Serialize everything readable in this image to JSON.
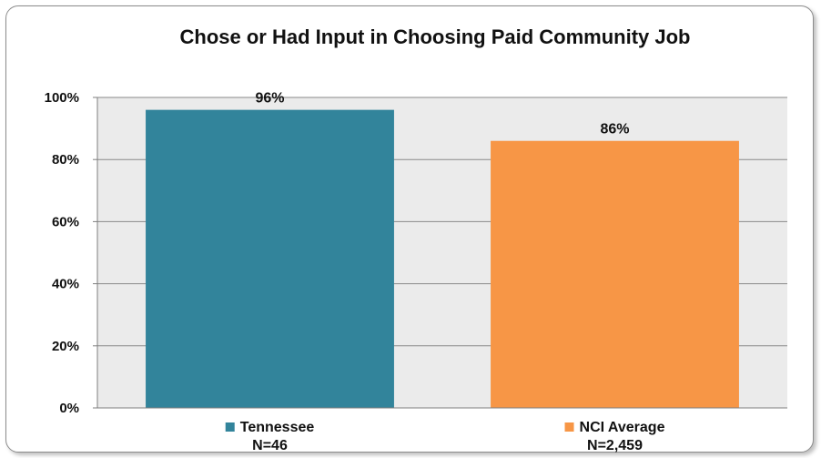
{
  "chart_data": {
    "type": "bar",
    "title": "Chose or Had Input in Choosing Paid Community Job",
    "categories": [
      "Tennessee",
      "NCI Average"
    ],
    "sample_sizes": [
      "N=46",
      "N=2,459"
    ],
    "values": [
      96,
      86
    ],
    "value_labels": [
      "96%",
      "86%"
    ],
    "colors": [
      "#32849b",
      "#f79646"
    ],
    "ylim": [
      0,
      100
    ],
    "yticks": [
      0,
      20,
      40,
      60,
      80,
      100
    ],
    "ytick_labels": [
      "0%",
      "20%",
      "40%",
      "60%",
      "80%",
      "100%"
    ],
    "grid": true,
    "plot_background": "#ebebeb"
  }
}
